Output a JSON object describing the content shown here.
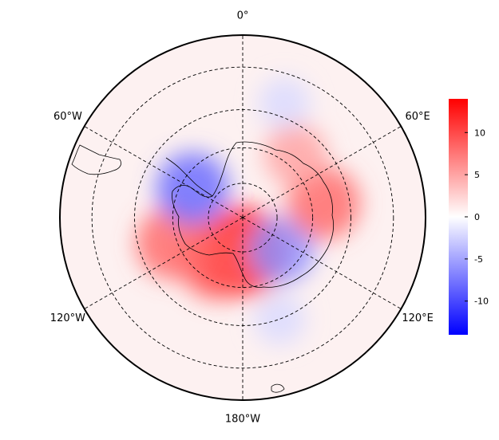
{
  "chart_data": {
    "type": "heatmap",
    "projection": "south-polar-stereographic",
    "title": "",
    "longitude_labels": [
      "0°",
      "60°E",
      "120°E",
      "180°W",
      "120°W",
      "60°W"
    ],
    "longitude_lines_deg": [
      0,
      60,
      120,
      180,
      240,
      300
    ],
    "latitude_circles_deg": [
      -30,
      -45,
      -60,
      -75
    ],
    "boundary_latitude_deg": -20,
    "colorbar": {
      "colormap": "bwr",
      "range": [
        -14,
        14
      ],
      "ticks": [
        10,
        5,
        0,
        -5,
        -10
      ],
      "tick_labels": [
        "10",
        "5",
        "0",
        "-5",
        "-10"
      ],
      "colors": {
        "low": "#0000ff",
        "mid": "#ffffff",
        "high": "#ff0000"
      }
    },
    "anomaly_features": [
      {
        "lon_deg": 180,
        "lat_deg": -75,
        "value": 13
      },
      {
        "lon_deg": 210,
        "lat_deg": -68,
        "value": 9
      },
      {
        "lon_deg": 250,
        "lat_deg": -58,
        "value": 8
      },
      {
        "lon_deg": 300,
        "lat_deg": -65,
        "value": -8
      },
      {
        "lon_deg": 130,
        "lat_deg": -68,
        "value": -6
      },
      {
        "lon_deg": 80,
        "lat_deg": -55,
        "value": 8
      },
      {
        "lon_deg": 40,
        "lat_deg": -55,
        "value": 5
      },
      {
        "lon_deg": 20,
        "lat_deg": -40,
        "value": -2
      },
      {
        "lon_deg": 160,
        "lat_deg": -45,
        "value": -2
      }
    ],
    "grid": true,
    "legend": "colorbar-right"
  }
}
